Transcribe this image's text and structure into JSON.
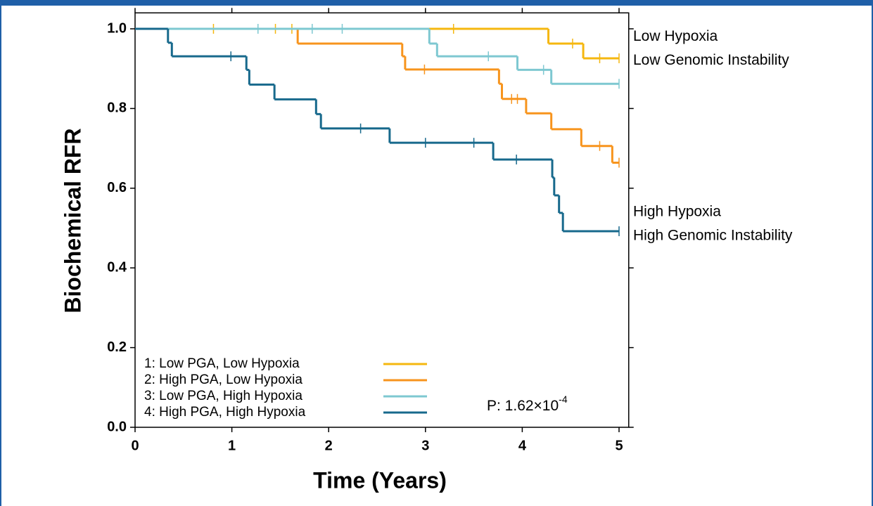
{
  "chart_data": {
    "type": "step",
    "x_label": "Time (Years)",
    "y_label": "Biochemical RFR",
    "xlim": [
      0,
      5.1
    ],
    "ylim": [
      0,
      1.04
    ],
    "xticks": [
      0,
      1,
      2,
      3,
      4,
      5
    ],
    "yticks": [
      {
        "value": 0,
        "label": "0.0"
      },
      {
        "value": 0.2,
        "label": "0.2"
      },
      {
        "value": 0.4,
        "label": "0.4"
      },
      {
        "value": 0.6,
        "label": "0.6"
      },
      {
        "value": 0.8,
        "label": "0.8"
      },
      {
        "value": 1,
        "label": "1.0"
      }
    ],
    "series": [
      {
        "name": "1: Low PGA, Low Hypoxia",
        "color": "#f5b70f",
        "x": [
          0,
          4.27,
          4.63,
          5
        ],
        "values": [
          1,
          0.963,
          0.926,
          0.926
        ],
        "censor_x": [
          0.81,
          1.45,
          1.62,
          3.29,
          4.52,
          4.8,
          5
        ],
        "censor_values": [
          1,
          1,
          1,
          1,
          0.963,
          0.926,
          0.926
        ]
      },
      {
        "name": "2: High PGA, Low Hypoxia",
        "color": "#f7941d",
        "x": [
          0,
          1.68,
          2.76,
          2.79,
          3.76,
          3.79,
          4.04,
          4.3,
          4.61,
          4.93,
          5
        ],
        "values": [
          1,
          0.963,
          0.931,
          0.898,
          0.862,
          0.824,
          0.788,
          0.748,
          0.706,
          0.664,
          0.664
        ],
        "censor_x": [
          2.99,
          3.89,
          3.95,
          4.8,
          5
        ],
        "censor_values": [
          0.898,
          0.824,
          0.824,
          0.706,
          0.664
        ]
      },
      {
        "name": "3: Low PGA, High Hypoxia",
        "color": "#7ec8d1",
        "x": [
          0,
          3.04,
          3.12,
          3.95,
          4.3,
          5
        ],
        "values": [
          1,
          0.963,
          0.931,
          0.897,
          0.862,
          0.862
        ],
        "censor_x": [
          1.27,
          1.83,
          2.14,
          3.65,
          4.22,
          5
        ],
        "censor_values": [
          1,
          1,
          1,
          0.931,
          0.897,
          0.862
        ]
      },
      {
        "name": "4: High PGA, High Hypoxia",
        "color": "#17698c",
        "x": [
          0,
          0.34,
          0.38,
          1.15,
          1.18,
          1.44,
          1.87,
          1.92,
          2.63,
          3.7,
          4.31,
          4.33,
          4.38,
          4.42,
          5
        ],
        "values": [
          1,
          0.965,
          0.931,
          0.897,
          0.86,
          0.823,
          0.786,
          0.75,
          0.714,
          0.672,
          0.627,
          0.582,
          0.538,
          0.492,
          0.492
        ],
        "censor_x": [
          0.99,
          2.33,
          3,
          3.5,
          3.94,
          5
        ],
        "censor_values": [
          0.931,
          0.75,
          0.714,
          0.714,
          0.672,
          0.492
        ]
      }
    ],
    "side_labels": [
      {
        "lines": [
          "Low Hypoxia",
          "Low Genomic Instability"
        ],
        "value": 0.93
      },
      {
        "lines": [
          "High Hypoxia",
          "High Genomic Instability"
        ],
        "value": 0.49
      }
    ],
    "p_value": {
      "text": "P: 1.62×10",
      "exponent": "-4"
    }
  }
}
